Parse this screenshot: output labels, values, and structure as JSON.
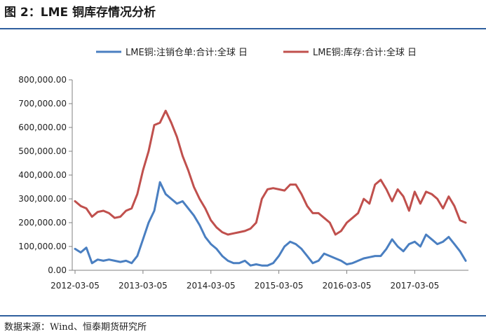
{
  "figure": {
    "title": "图 2：LME 铜库存情况分析",
    "source": "数据来源：Wind、恒泰期货研究所"
  },
  "chart_data": {
    "type": "line",
    "legend_position": "top",
    "grid": false,
    "ylim": [
      0,
      800000
    ],
    "yticks": [
      "0.00",
      "100,000.00",
      "200,000.00",
      "300,000.00",
      "400,000.00",
      "500,000.00",
      "600,000.00",
      "700,000.00",
      "800,000.00"
    ],
    "xticks": [
      "2012-03-05",
      "2013-03-05",
      "2014-03-05",
      "2015-03-05",
      "2016-03-05",
      "2017-03-05"
    ],
    "x": [
      "2012-03",
      "2012-04",
      "2012-05",
      "2012-06",
      "2012-07",
      "2012-08",
      "2012-09",
      "2012-10",
      "2012-11",
      "2012-12",
      "2013-01",
      "2013-02",
      "2013-03",
      "2013-04",
      "2013-05",
      "2013-06",
      "2013-07",
      "2013-08",
      "2013-09",
      "2013-10",
      "2013-11",
      "2013-12",
      "2014-01",
      "2014-02",
      "2014-03",
      "2014-04",
      "2014-05",
      "2014-06",
      "2014-07",
      "2014-08",
      "2014-09",
      "2014-10",
      "2014-11",
      "2014-12",
      "2015-01",
      "2015-02",
      "2015-03",
      "2015-04",
      "2015-05",
      "2015-06",
      "2015-07",
      "2015-08",
      "2015-09",
      "2015-10",
      "2015-11",
      "2015-12",
      "2016-01",
      "2016-02",
      "2016-03",
      "2016-04",
      "2016-05",
      "2016-06",
      "2016-07",
      "2016-08",
      "2016-09",
      "2016-10",
      "2016-11",
      "2016-12",
      "2017-01",
      "2017-02",
      "2017-03",
      "2017-04",
      "2017-05",
      "2017-06",
      "2017-07",
      "2017-08",
      "2017-09",
      "2017-10",
      "2017-11",
      "2017-12"
    ],
    "series": [
      {
        "name": "LME铜:注销仓单:合计:全球 日",
        "color": "#4a7fc1",
        "values": [
          90000,
          75000,
          95000,
          30000,
          45000,
          40000,
          45000,
          40000,
          35000,
          40000,
          30000,
          60000,
          130000,
          200000,
          250000,
          370000,
          320000,
          300000,
          280000,
          290000,
          260000,
          230000,
          190000,
          140000,
          110000,
          90000,
          60000,
          40000,
          30000,
          30000,
          40000,
          20000,
          25000,
          20000,
          20000,
          30000,
          60000,
          100000,
          120000,
          110000,
          90000,
          60000,
          30000,
          40000,
          70000,
          60000,
          50000,
          40000,
          25000,
          30000,
          40000,
          50000,
          55000,
          60000,
          60000,
          90000,
          130000,
          100000,
          80000,
          110000,
          120000,
          100000,
          150000,
          130000,
          110000,
          120000,
          140000,
          110000,
          80000,
          40000
        ]
      },
      {
        "name": "LME铜:库存:合计:全球 日",
        "color": "#c0504d",
        "values": [
          290000,
          270000,
          260000,
          225000,
          245000,
          250000,
          240000,
          220000,
          225000,
          250000,
          260000,
          320000,
          420000,
          500000,
          610000,
          620000,
          670000,
          620000,
          560000,
          480000,
          420000,
          350000,
          300000,
          260000,
          210000,
          180000,
          160000,
          150000,
          155000,
          160000,
          165000,
          175000,
          200000,
          300000,
          340000,
          345000,
          340000,
          335000,
          360000,
          360000,
          320000,
          270000,
          240000,
          240000,
          220000,
          200000,
          150000,
          165000,
          200000,
          220000,
          240000,
          300000,
          280000,
          360000,
          380000,
          340000,
          290000,
          340000,
          310000,
          250000,
          330000,
          280000,
          330000,
          320000,
          300000,
          260000,
          310000,
          270000,
          210000,
          200000
        ]
      }
    ]
  }
}
